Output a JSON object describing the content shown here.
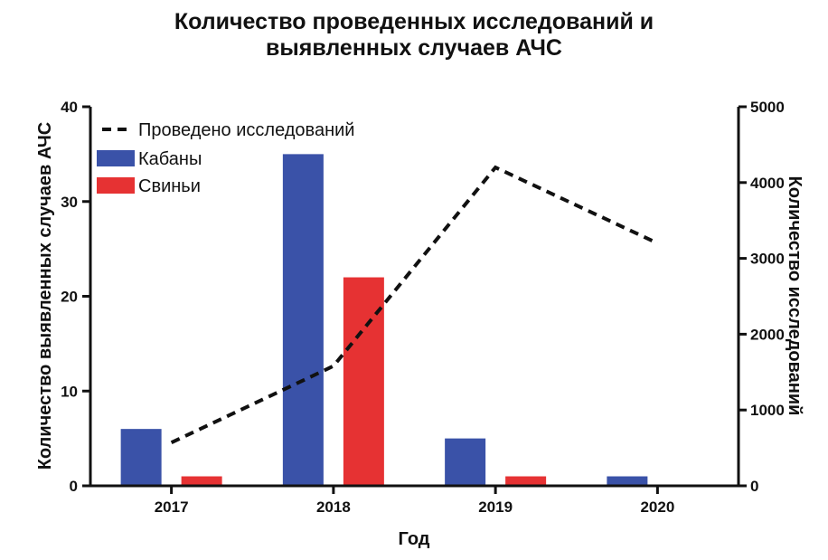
{
  "chart_data": {
    "type": "bar",
    "title_lines": [
      "Количество проведенных исследований и",
      "выявленных случаев АЧС"
    ],
    "xlabel": "Год",
    "ylabel": "Количество выявленных случаев АЧС",
    "y2label": "Количество исследований",
    "categories": [
      "2017",
      "2018",
      "2019",
      "2020"
    ],
    "ylim": [
      0,
      40
    ],
    "y2lim": [
      0,
      5000
    ],
    "yticks": [
      0,
      10,
      20,
      30,
      40
    ],
    "y2ticks": [
      0,
      1000,
      2000,
      3000,
      4000,
      5000
    ],
    "legend_position": "top-left",
    "grid": false,
    "series": [
      {
        "name": "Кабаны",
        "kind": "bar",
        "axis": "left",
        "color": "#3a52a8",
        "values": [
          6,
          35,
          5,
          1
        ]
      },
      {
        "name": "Свиньи",
        "kind": "bar",
        "axis": "left",
        "color": "#e63233",
        "values": [
          1,
          22,
          1,
          0
        ]
      },
      {
        "name": "Проведено исследований",
        "kind": "line",
        "style": "dashed",
        "axis": "right",
        "color": "#111111",
        "values": [
          570,
          1580,
          4200,
          3200
        ]
      }
    ]
  }
}
